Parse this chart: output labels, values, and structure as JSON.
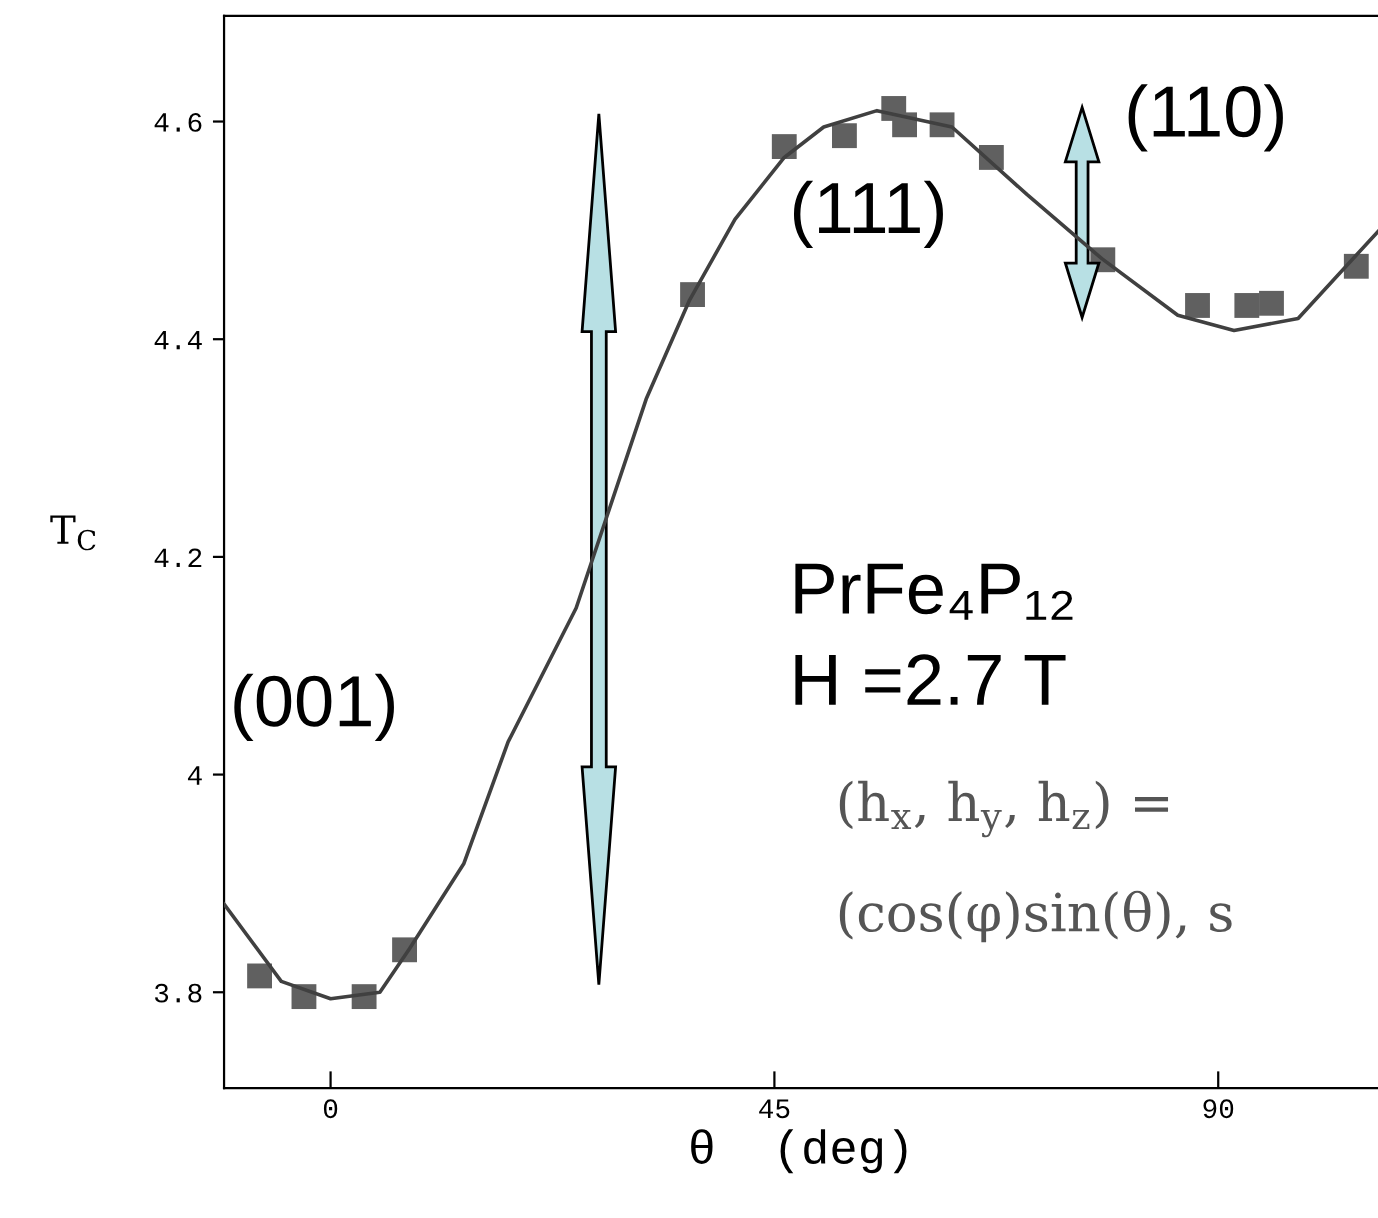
{
  "chart_data": {
    "type": "scatter",
    "xlabel": "θ  (deg)",
    "ylabel": "T$_{C}$",
    "xlim": [
      -10.8,
      106.2
    ],
    "xticks": [
      0,
      45,
      90
    ],
    "ylim": [
      3.712,
      4.697
    ],
    "yticks": [
      3.8,
      {
        "value": 4.0,
        "label": "4"
      },
      4.2,
      4.4,
      4.6
    ],
    "grid": false,
    "legend": false,
    "series": [
      {
        "marker": "square",
        "color": "#606060",
        "x": [
          -7.2,
          -2.7,
          3.4,
          7.5,
          36.7,
          46.0,
          52.1,
          57.1,
          58.2,
          62.0,
          67.0,
          78.3,
          87.9,
          92.9,
          95.4,
          104.0
        ],
        "values": [
          3.815,
          3.796,
          3.796,
          3.839,
          4.441,
          4.577,
          4.587,
          4.612,
          4.597,
          4.597,
          4.567,
          4.473,
          4.431,
          4.431,
          4.433,
          4.467
        ]
      },
      {
        "type": "line",
        "color": "#404040",
        "x": [
          -10.8,
          -5,
          0,
          5,
          8,
          13.5,
          18,
          24.9,
          32.0,
          36.4,
          41.0,
          46.0,
          50.0,
          55.4,
          63.0,
          70.6,
          78.2,
          85.9,
          91.6,
          98.1,
          106.2
        ],
        "values": [
          3.881,
          3.81,
          3.794,
          3.8,
          3.84,
          3.918,
          4.03,
          4.153,
          4.345,
          4.436,
          4.51,
          4.567,
          4.595,
          4.61,
          4.595,
          4.533,
          4.474,
          4.422,
          4.408,
          4.419,
          4.499
        ]
      }
    ],
    "annotations": [
      "(110)",
      "(111)",
      "(001)",
      "PrFe₄P₁₂",
      "H =2.7 T",
      "(h$_{x}$, h$_{y}$, h$_{z}$) =",
      "(cos(φ)sin(θ), s"
    ]
  }
}
